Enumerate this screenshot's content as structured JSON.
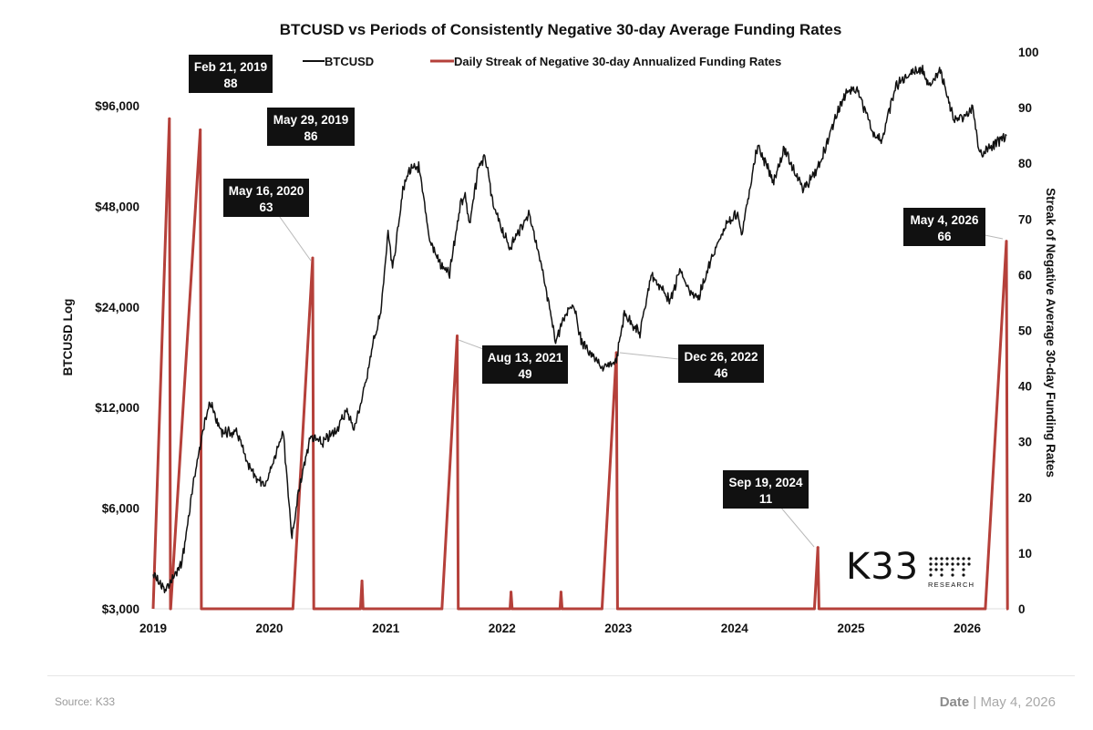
{
  "chart_data": {
    "type": "line",
    "title": "BTCUSD vs Periods of Consistently Negative 30-day Average Funding Rates",
    "legend": [
      {
        "name": "BTCUSD",
        "color": "#111111"
      },
      {
        "name": "Daily Streak of Negative 30-day Annualized Funding Rates",
        "color": "#b5403a"
      }
    ],
    "legend_position": "top",
    "ylabel_left": "BTCUSD Log",
    "ylabel_right": "Streak of Negative Average 30-day Funding Rates",
    "y_left_scale": "log",
    "y_left_ticks": [
      {
        "value": 3000,
        "label": "$3,000"
      },
      {
        "value": 6000,
        "label": "$6,000"
      },
      {
        "value": 12000,
        "label": "$12,000"
      },
      {
        "value": 24000,
        "label": "$24,000"
      },
      {
        "value": 48000,
        "label": "$48,000"
      },
      {
        "value": 96000,
        "label": "$96,000"
      }
    ],
    "y_right_ticks": [
      "0",
      "10",
      "20",
      "30",
      "40",
      "50",
      "60",
      "70",
      "80",
      "90",
      "100"
    ],
    "y_right_range": [
      0,
      100
    ],
    "x_ticks": [
      "2019",
      "2020",
      "2021",
      "2022",
      "2023",
      "2024",
      "2025",
      "2026"
    ],
    "x_range": [
      "2019-01-01",
      "2026-05-04"
    ],
    "grid": false,
    "series": [
      {
        "name": "BTCUSD",
        "color": "#111111",
        "x": [
          "2019-01-01",
          "2019-02-08",
          "2019-04-01",
          "2019-05-15",
          "2019-06-26",
          "2019-08-01",
          "2019-09-24",
          "2019-10-26",
          "2019-12-17",
          "2020-02-13",
          "2020-03-12",
          "2020-04-01",
          "2020-05-08",
          "2020-06-15",
          "2020-07-27",
          "2020-09-01",
          "2020-09-23",
          "2020-10-21",
          "2020-11-24",
          "2020-12-16",
          "2021-01-08",
          "2021-01-22",
          "2021-02-21",
          "2021-03-13",
          "2021-04-14",
          "2021-05-19",
          "2021-06-22",
          "2021-07-20",
          "2021-08-23",
          "2021-09-07",
          "2021-09-21",
          "2021-10-20",
          "2021-11-10",
          "2021-12-04",
          "2022-01-24",
          "2022-03-28",
          "2022-05-09",
          "2022-06-18",
          "2022-07-29",
          "2022-08-14",
          "2022-09-06",
          "2022-11-09",
          "2022-11-21",
          "2022-12-26",
          "2023-01-20",
          "2023-03-10",
          "2023-04-14",
          "2023-06-15",
          "2023-07-13",
          "2023-08-17",
          "2023-09-11",
          "2023-10-24",
          "2023-12-04",
          "2024-01-11",
          "2024-01-23",
          "2024-02-28",
          "2024-03-14",
          "2024-05-01",
          "2024-06-05",
          "2024-08-05",
          "2024-09-19",
          "2024-11-12",
          "2024-12-17",
          "2025-01-20",
          "2025-03-10",
          "2025-04-08",
          "2025-05-22",
          "2025-07-14",
          "2025-08-14",
          "2025-09-01",
          "2025-10-06",
          "2025-11-20",
          "2025-12-20",
          "2026-01-20",
          "2026-02-06",
          "2026-03-15",
          "2026-05-04"
        ],
        "y": [
          3800,
          3400,
          4100,
          7900,
          12600,
          10200,
          10000,
          8000,
          6900,
          10300,
          4900,
          6600,
          9800,
          9400,
          10200,
          11800,
          10300,
          13100,
          19000,
          23000,
          40000,
          31000,
          52000,
          61000,
          63000,
          38000,
          32000,
          30000,
          49000,
          52000,
          42000,
          64000,
          67000,
          48000,
          36000,
          46000,
          30000,
          19000,
          24000,
          24500,
          19000,
          15800,
          15700,
          16600,
          23000,
          20000,
          30000,
          25000,
          31000,
          26000,
          25900,
          34000,
          42000,
          46000,
          39000,
          62000,
          73000,
          57000,
          71000,
          54000,
          62000,
          88000,
          106000,
          107000,
          80000,
          76000,
          110000,
          122000,
          123000,
          109000,
          124000,
          87000,
          88000,
          94000,
          69000,
          72000,
          78000
        ]
      },
      {
        "name": "Daily Streak of Negative 30-day Annualized Funding Rates",
        "color": "#b5403a",
        "peaks": [
          {
            "start": "2019-01-01",
            "date": "2019-02-21",
            "value": 88
          },
          {
            "start": "2019-02-25",
            "date": "2019-05-29",
            "value": 86
          },
          {
            "start": "2020-03-15",
            "date": "2020-05-16",
            "value": 63
          },
          {
            "start": "2020-10-13",
            "date": "2020-10-18",
            "value": 5
          },
          {
            "start": "2021-06-26",
            "date": "2021-08-13",
            "value": 49
          },
          {
            "start": "2022-01-26",
            "date": "2022-01-29",
            "value": 3
          },
          {
            "start": "2022-07-02",
            "date": "2022-07-05",
            "value": 3
          },
          {
            "start": "2022-11-11",
            "date": "2022-12-26",
            "value": 46
          },
          {
            "start": "2024-09-08",
            "date": "2024-09-19",
            "value": 11
          },
          {
            "start": "2026-02-27",
            "date": "2026-05-04",
            "value": 66
          }
        ]
      }
    ],
    "annotations": [
      {
        "date_label": "Feb 21, 2019",
        "value": "88"
      },
      {
        "date_label": "May 29, 2019",
        "value": "86"
      },
      {
        "date_label": "May 16, 2020",
        "value": "63"
      },
      {
        "date_label": "Aug 13, 2021",
        "value": "49"
      },
      {
        "date_label": "Dec 26, 2022",
        "value": "46"
      },
      {
        "date_label": "Sep 19, 2024",
        "value": "11"
      },
      {
        "date_label": "May 4, 2026",
        "value": "66"
      }
    ]
  },
  "logo": {
    "name": "K33",
    "sub": "RESEARCH"
  },
  "footer": {
    "source": "Source:  K33",
    "date_label": "Date",
    "date_value": "May 4, 2026"
  }
}
